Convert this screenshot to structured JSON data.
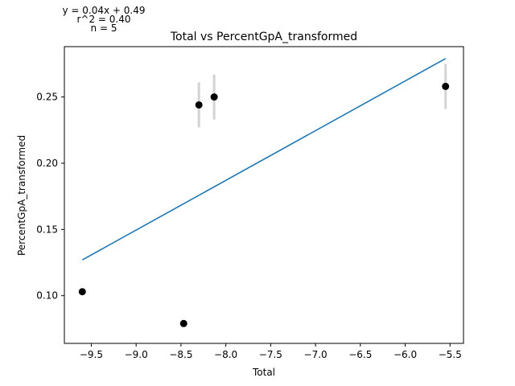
{
  "chart_data": {
    "type": "scatter",
    "title": "Total vs PercentGpA_transformed",
    "xlabel": "Total",
    "ylabel": "PercentGpA_transformed",
    "xlim": [
      -9.8,
      -5.35
    ],
    "ylim": [
      0.064,
      0.288
    ],
    "xticks": [
      -9.5,
      -9.0,
      -8.5,
      -8.0,
      -7.5,
      -7.0,
      -6.5,
      -6.0,
      -5.5
    ],
    "xtick_labels": [
      "−9.5",
      "−9.0",
      "−8.5",
      "−8.0",
      "−7.5",
      "−7.0",
      "−6.5",
      "−6.0",
      "−5.5"
    ],
    "yticks": [
      0.1,
      0.15,
      0.2,
      0.25
    ],
    "ytick_labels": [
      "0.10",
      "0.15",
      "0.20",
      "0.25"
    ],
    "grid": false,
    "points": [
      {
        "x": -9.6,
        "y": 0.103
      },
      {
        "x": -8.47,
        "y": 0.079
      },
      {
        "x": -8.3,
        "y": 0.244,
        "err": 0.017
      },
      {
        "x": -8.13,
        "y": 0.25,
        "err": 0.017
      },
      {
        "x": -5.55,
        "y": 0.258,
        "err": 0.017
      }
    ],
    "fit_line": {
      "x": [
        -9.6,
        -5.55
      ],
      "y": [
        0.127,
        0.279
      ]
    },
    "annotations": [
      "y = 0.04x + 0.49",
      "r^2 = 0.40",
      "n = 5"
    ],
    "colors": {
      "points": "#000000",
      "errorbars": "#d3d3d3",
      "fit": "#1f77b4",
      "axes": "#000000"
    }
  }
}
